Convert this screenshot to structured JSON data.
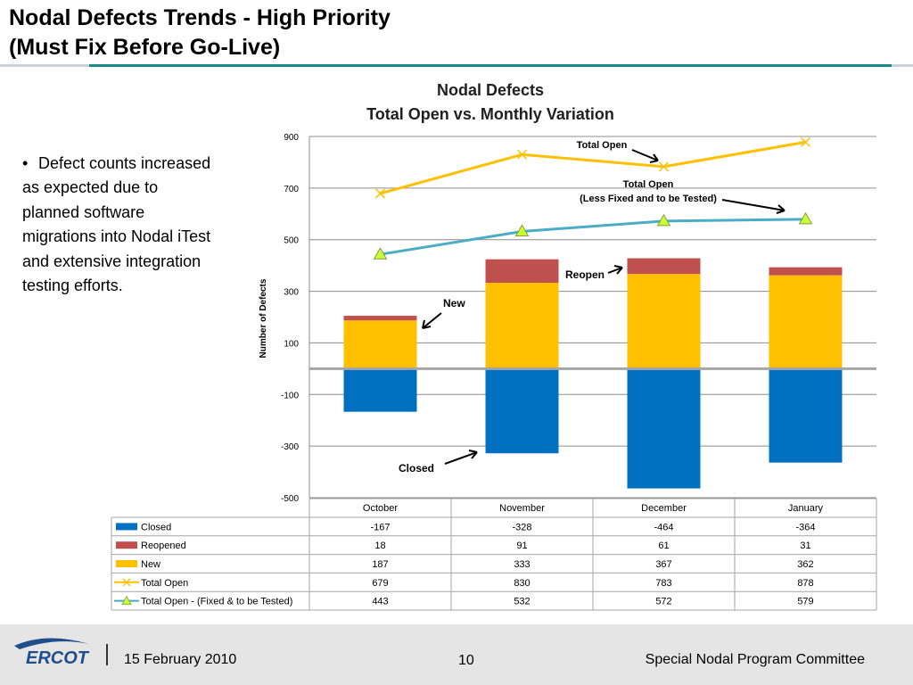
{
  "slide": {
    "title_line1": "Nodal Defects Trends - High Priority",
    "title_line2": "(Must Fix Before Go-Live)",
    "bullet": "Defect counts increased as expected due to planned software migrations into Nodal iTest and extensive integration testing efforts."
  },
  "footer": {
    "logo_text": "ERCOT",
    "date": "15 February 2010",
    "page_number": "10",
    "committee": "Special Nodal Program Committee"
  },
  "annotations": {
    "total_open": "Total Open",
    "total_open_less_1": "Total Open",
    "total_open_less_2": "(Less Fixed and to be Tested)",
    "reopen": "Reopen",
    "new": "New",
    "closed": "Closed"
  },
  "colors": {
    "closed": "#0070c0",
    "reopened": "#c0504d",
    "new": "#ffc000",
    "total_open": "#ffc000",
    "total_open_fixed": "#4bacc6",
    "triangle_fill": "#ccff33"
  },
  "chart_data": {
    "type": "bar",
    "title": "Nodal Defects",
    "subtitle": "Total Open vs. Monthly Variation",
    "xlabel": "",
    "ylabel": "Number of Defects",
    "categories": [
      "October",
      "November",
      "December",
      "January"
    ],
    "y_ticks": [
      900,
      700,
      500,
      300,
      100,
      -100,
      -300,
      -500
    ],
    "ylim": [
      -500,
      900
    ],
    "grid": true,
    "stacked": true,
    "series": [
      {
        "name": "Closed",
        "kind": "bar",
        "values": [
          -167,
          -328,
          -464,
          -364
        ],
        "marker": "square"
      },
      {
        "name": "Reopened",
        "kind": "bar",
        "values": [
          18,
          91,
          61,
          31
        ],
        "marker": "square"
      },
      {
        "name": "New",
        "kind": "bar",
        "values": [
          187,
          333,
          367,
          362
        ],
        "marker": "square"
      },
      {
        "name": "Total Open",
        "kind": "line",
        "values": [
          679,
          830,
          783,
          878
        ],
        "marker": "x"
      },
      {
        "name": "Total Open - (Fixed & to be Tested)",
        "kind": "line",
        "values": [
          443,
          532,
          572,
          579
        ],
        "marker": "triangle"
      }
    ],
    "table": {
      "rows": [
        {
          "label": "Closed",
          "values": [
            "-167",
            "-328",
            "-464",
            "-364"
          ]
        },
        {
          "label": "Reopened",
          "values": [
            "18",
            "91",
            "61",
            "31"
          ]
        },
        {
          "label": "New",
          "values": [
            "187",
            "333",
            "367",
            "362"
          ]
        },
        {
          "label": "Total Open",
          "values": [
            "679",
            "830",
            "783",
            "878"
          ]
        },
        {
          "label": "Total Open - (Fixed & to be Tested)",
          "values": [
            "443",
            "532",
            "572",
            "579"
          ]
        }
      ]
    }
  }
}
